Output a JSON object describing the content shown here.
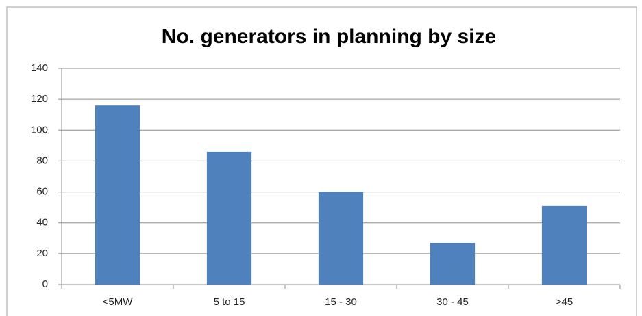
{
  "chart_data": {
    "type": "bar",
    "title": "No. generators in planning by size",
    "categories": [
      "<5MW",
      "5 to 15",
      "15 - 30",
      "30 - 45",
      ">45"
    ],
    "values": [
      116,
      86,
      60,
      27,
      51
    ],
    "color": "#4f81bd",
    "ylim": [
      0,
      140
    ],
    "yticks": [
      0,
      20,
      40,
      60,
      80,
      100,
      120,
      140
    ],
    "grid": true
  }
}
